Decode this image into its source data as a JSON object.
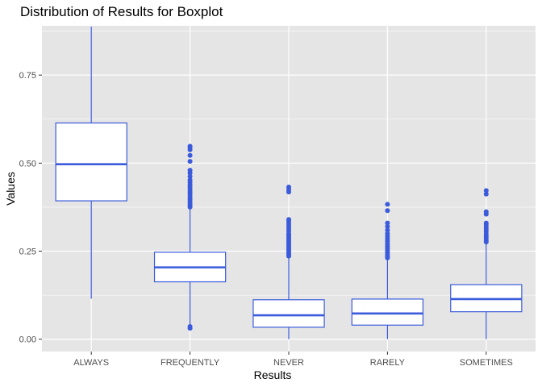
{
  "chart_data": {
    "type": "boxplot",
    "title": "Distribution of Results for Boxplot",
    "xlabel": "Results",
    "ylabel": "Values",
    "categories": [
      "ALWAYS",
      "FREQUENTLY",
      "NEVER",
      "RARELY",
      "SOMETIMES"
    ],
    "ylim": [
      -0.035,
      0.89
    ],
    "yticks": [
      0.0,
      0.25,
      0.5,
      0.75
    ],
    "ytick_labels": [
      "0.00",
      "0.25",
      "0.50",
      "0.75"
    ],
    "grid": true,
    "legend": "none",
    "colors": {
      "panel": "#e5e5e5",
      "gridline": "#ffffff",
      "box_stroke": "#3b5bdb",
      "box_fill": "#ffffff",
      "outlier": "#3b5bdb",
      "tick_text": "#4d4d4d"
    },
    "boxes": [
      {
        "category": "ALWAYS",
        "min": 0.115,
        "q1": 0.393,
        "median": 0.497,
        "q3": 0.614,
        "max": 0.888,
        "outliers": []
      },
      {
        "category": "FREQUENTLY",
        "min": 0.04,
        "q1": 0.163,
        "median": 0.204,
        "q3": 0.247,
        "max": 0.372,
        "outliers": [
          0.548,
          0.545,
          0.538,
          0.522,
          0.505,
          0.48,
          0.472,
          0.462,
          0.452,
          0.445,
          0.438,
          0.432,
          0.425,
          0.418,
          0.412,
          0.405,
          0.398,
          0.392,
          0.386,
          0.38,
          0.375,
          0.036,
          0.031
        ]
      },
      {
        "category": "NEVER",
        "min": 0.0,
        "q1": 0.034,
        "median": 0.068,
        "q3": 0.112,
        "max": 0.232,
        "outliers": [
          0.432,
          0.425,
          0.418,
          0.34,
          0.335,
          0.328,
          0.322,
          0.315,
          0.308,
          0.3,
          0.295,
          0.29,
          0.285,
          0.28,
          0.275,
          0.27,
          0.265,
          0.26,
          0.255,
          0.25,
          0.245,
          0.24,
          0.236
        ]
      },
      {
        "category": "RARELY",
        "min": 0.0,
        "q1": 0.04,
        "median": 0.073,
        "q3": 0.114,
        "max": 0.228,
        "outliers": [
          0.383,
          0.365,
          0.33,
          0.32,
          0.31,
          0.3,
          0.292,
          0.285,
          0.278,
          0.27,
          0.264,
          0.258,
          0.252,
          0.246,
          0.24,
          0.235,
          0.231
        ]
      },
      {
        "category": "SOMETIMES",
        "min": 0.0,
        "q1": 0.078,
        "median": 0.114,
        "q3": 0.155,
        "max": 0.272,
        "outliers": [
          0.422,
          0.412,
          0.362,
          0.355,
          0.33,
          0.325,
          0.318,
          0.312,
          0.305,
          0.298,
          0.292,
          0.286,
          0.28,
          0.276
        ]
      }
    ]
  }
}
